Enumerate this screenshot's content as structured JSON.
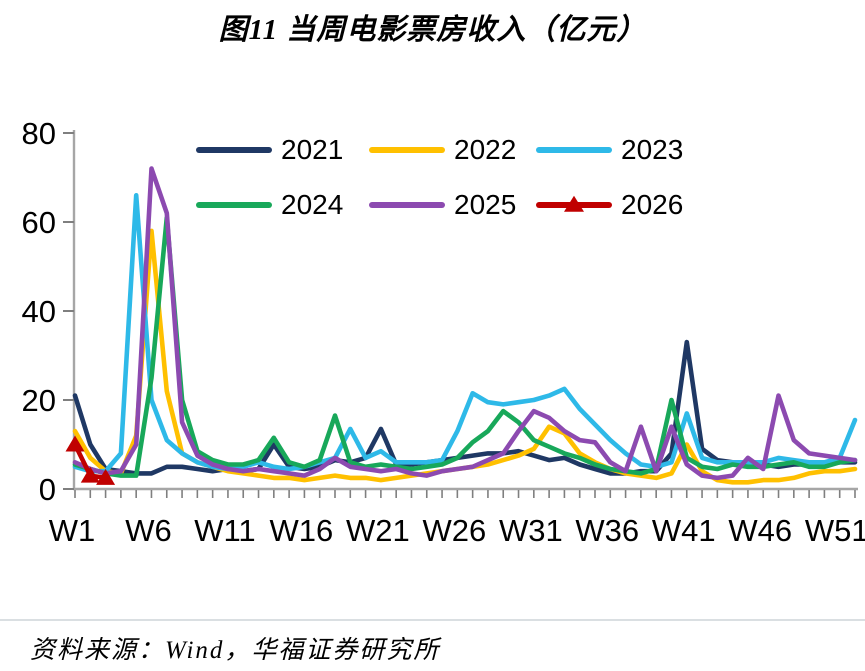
{
  "title": "图11 当周电影票房收入（亿元）",
  "source_note": "资料来源：Wind，华福证券研究所",
  "colors": {
    "axis": "#a6a6a6",
    "tick": "#7f7f7f",
    "text": "#000000",
    "divider": "#dadfe2",
    "background": "#ffffff"
  },
  "chart_data": {
    "type": "line",
    "title": "图11 当周电影票房收入（亿元）",
    "xlabel": "",
    "ylabel": "",
    "ylim": [
      0,
      80
    ],
    "yticks": [
      0,
      20,
      40,
      60,
      80
    ],
    "grid": false,
    "legend_position": "top-inside",
    "x_unit": "week-of-year",
    "weeks": 52,
    "x_tick_weeks": [
      1,
      6,
      11,
      16,
      21,
      26,
      31,
      36,
      41,
      46,
      51
    ],
    "x_tick_labels": [
      "W1",
      "W6",
      "W11",
      "W16",
      "W21",
      "W26",
      "W31",
      "W36",
      "W41",
      "W46",
      "W51"
    ],
    "series": [
      {
        "name": "2021",
        "color": "#1F3864",
        "marker": "none",
        "values": [
          21,
          10,
          4.5,
          4,
          3.5,
          3.5,
          5,
          5,
          4.5,
          4,
          4.5,
          4,
          4.5,
          10,
          5,
          4.5,
          5,
          6.5,
          6,
          7,
          13.5,
          5.5,
          5.5,
          6,
          6.5,
          7,
          7.5,
          8,
          8,
          8.5,
          7.5,
          6.5,
          7,
          5.5,
          4.5,
          3.5,
          3.5,
          4,
          4,
          8,
          33,
          9,
          6.5,
          6,
          5.5,
          5.5,
          5,
          5.5,
          5.5,
          5.5,
          6,
          6
        ]
      },
      {
        "name": "2022",
        "color": "#FFC000",
        "marker": "none",
        "values": [
          13,
          7,
          4,
          3.5,
          12,
          58,
          22,
          8,
          6,
          5,
          4,
          3.5,
          3,
          2.5,
          2.5,
          2,
          2.5,
          3,
          2.5,
          2.5,
          2,
          2.5,
          3,
          3.5,
          4,
          4.5,
          5,
          5.5,
          6.5,
          7.5,
          9,
          14,
          12.5,
          8,
          6,
          4.5,
          3.5,
          3,
          2.5,
          3.5,
          10,
          4,
          2,
          1.5,
          1.5,
          2,
          2,
          2.5,
          3.5,
          4,
          4,
          4.5
        ]
      },
      {
        "name": "2023",
        "color": "#2EB9E8",
        "marker": "none",
        "values": [
          5,
          4,
          4,
          8,
          66,
          20,
          11,
          8,
          6,
          5,
          4.5,
          5,
          6,
          5,
          4.5,
          5,
          6,
          7,
          13.5,
          7,
          8.5,
          6,
          6,
          6,
          6.5,
          13,
          21.5,
          19.5,
          19,
          19.5,
          20,
          21,
          22.5,
          18,
          14.5,
          11,
          8,
          5.5,
          5,
          6,
          17,
          7,
          6,
          6,
          6,
          6,
          7,
          6.5,
          6,
          6,
          7,
          15.5
        ]
      },
      {
        "name": "2024",
        "color": "#18A85A",
        "marker": "none",
        "values": [
          5.5,
          4.5,
          3.5,
          3,
          3,
          25,
          61,
          20,
          8.5,
          6.5,
          5.5,
          5.5,
          6.5,
          11.5,
          6,
          5,
          6.5,
          16.5,
          6,
          5,
          5.5,
          5,
          4.5,
          5,
          5.5,
          7,
          10.5,
          13,
          17.5,
          15,
          11,
          9.5,
          8,
          7,
          5.5,
          4.5,
          4,
          3.5,
          4.5,
          20,
          7,
          5,
          4.5,
          5.5,
          5,
          5,
          5.5,
          6,
          5,
          5,
          6,
          6.5
        ]
      },
      {
        "name": "2025",
        "color": "#8C4AB0",
        "marker": "none",
        "values": [
          6,
          4.5,
          3.5,
          4,
          10,
          72,
          62,
          15,
          7.5,
          5.5,
          4.5,
          4,
          4.5,
          4,
          3.5,
          3,
          4.5,
          7,
          5,
          4.5,
          4,
          4.5,
          3.5,
          3,
          4,
          4.5,
          5,
          6.5,
          8,
          13,
          17.5,
          16,
          13,
          11,
          10.5,
          6,
          4,
          14,
          4,
          14,
          5.5,
          3,
          2.5,
          3,
          7,
          4.5,
          21,
          11,
          8,
          7.5,
          7,
          6.5
        ]
      },
      {
        "name": "2026",
        "color": "#C00000",
        "marker": "triangle",
        "values": [
          10,
          3,
          2.5
        ]
      }
    ]
  }
}
